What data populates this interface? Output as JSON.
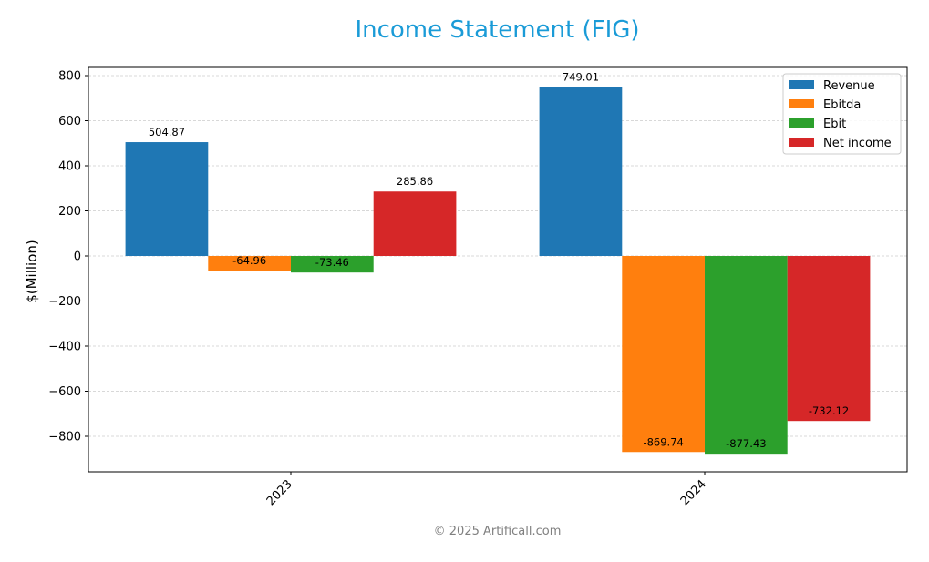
{
  "title": "Income Statement (FIG)",
  "footer": "© 2025 Artificall.com",
  "chart_data": {
    "type": "bar",
    "title": "Income Statement (FIG)",
    "xlabel": "",
    "ylabel": "$(Million)",
    "categories": [
      "2023",
      "2024"
    ],
    "series": [
      {
        "name": "Revenue",
        "color": "#1f77b4",
        "values": [
          504.87,
          749.01
        ]
      },
      {
        "name": "Ebitda",
        "color": "#ff7f0e",
        "values": [
          -64.96,
          -869.74
        ]
      },
      {
        "name": "Ebit",
        "color": "#2ca02c",
        "values": [
          -73.46,
          -877.43
        ]
      },
      {
        "name": "Net income",
        "color": "#d62728",
        "values": [
          285.86,
          -732.12
        ]
      }
    ],
    "ylim": [
      -957,
      836
    ],
    "yticks": [
      800,
      600,
      400,
      200,
      0,
      -200,
      -400,
      -600,
      -800
    ],
    "ytick_labels": [
      "800",
      "600",
      "400",
      "200",
      "0",
      "−200",
      "−400",
      "−600",
      "−800"
    ],
    "grid": true,
    "legend_position": "upper right"
  }
}
